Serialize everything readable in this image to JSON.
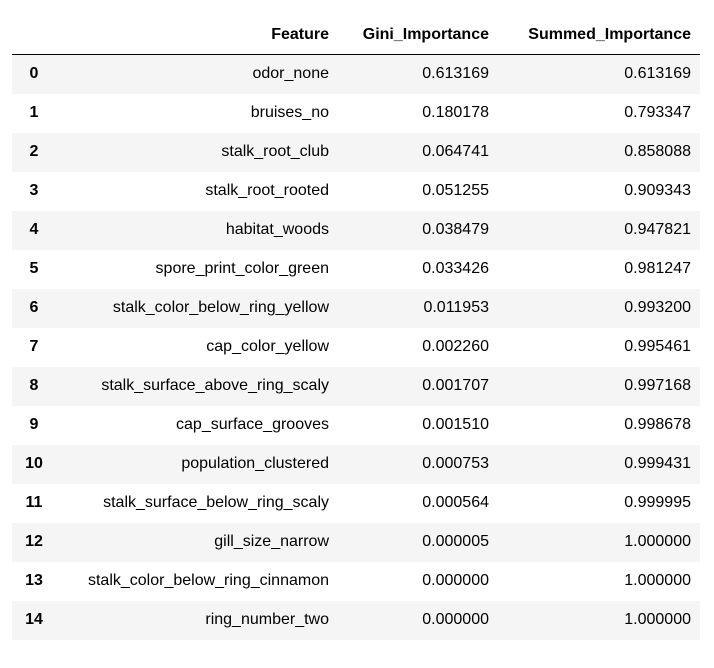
{
  "table": {
    "columns": [
      "",
      "Feature",
      "Gini_Importance",
      "Summed_Importance"
    ],
    "rows": [
      {
        "index": "0",
        "feature": "odor_none",
        "gini": "0.613169",
        "summed": "0.613169"
      },
      {
        "index": "1",
        "feature": "bruises_no",
        "gini": "0.180178",
        "summed": "0.793347"
      },
      {
        "index": "2",
        "feature": "stalk_root_club",
        "gini": "0.064741",
        "summed": "0.858088"
      },
      {
        "index": "3",
        "feature": "stalk_root_rooted",
        "gini": "0.051255",
        "summed": "0.909343"
      },
      {
        "index": "4",
        "feature": "habitat_woods",
        "gini": "0.038479",
        "summed": "0.947821"
      },
      {
        "index": "5",
        "feature": "spore_print_color_green",
        "gini": "0.033426",
        "summed": "0.981247"
      },
      {
        "index": "6",
        "feature": "stalk_color_below_ring_yellow",
        "gini": "0.011953",
        "summed": "0.993200"
      },
      {
        "index": "7",
        "feature": "cap_color_yellow",
        "gini": "0.002260",
        "summed": "0.995461"
      },
      {
        "index": "8",
        "feature": "stalk_surface_above_ring_scaly",
        "gini": "0.001707",
        "summed": "0.997168"
      },
      {
        "index": "9",
        "feature": "cap_surface_grooves",
        "gini": "0.001510",
        "summed": "0.998678"
      },
      {
        "index": "10",
        "feature": "population_clustered",
        "gini": "0.000753",
        "summed": "0.999431"
      },
      {
        "index": "11",
        "feature": "stalk_surface_below_ring_scaly",
        "gini": "0.000564",
        "summed": "0.999995"
      },
      {
        "index": "12",
        "feature": "gill_size_narrow",
        "gini": "0.000005",
        "summed": "1.000000"
      },
      {
        "index": "13",
        "feature": "stalk_color_below_ring_cinnamon",
        "gini": "0.000000",
        "summed": "1.000000"
      },
      {
        "index": "14",
        "feature": "ring_number_two",
        "gini": "0.000000",
        "summed": "1.000000"
      }
    ]
  }
}
